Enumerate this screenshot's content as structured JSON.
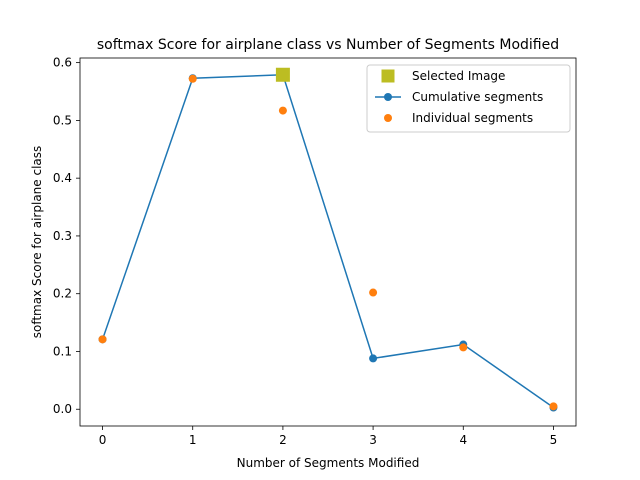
{
  "chart_data": {
    "type": "line",
    "title": "softmax Score for airplane class vs Number of Segments Modified",
    "xlabel": "Number of Segments Modified",
    "ylabel": "softmax Score for airplane class",
    "xlim": [
      -0.25,
      5.25
    ],
    "ylim": [
      -0.029,
      0.608
    ],
    "x_ticks": [
      0,
      1,
      2,
      3,
      4,
      5
    ],
    "y_ticks": [
      0.0,
      0.1,
      0.2,
      0.3,
      0.4,
      0.5,
      0.6
    ],
    "x_tick_labels": [
      "0",
      "1",
      "2",
      "3",
      "4",
      "5"
    ],
    "y_tick_labels": [
      "0.0",
      "0.1",
      "0.2",
      "0.3",
      "0.4",
      "0.5",
      "0.6"
    ],
    "grid": false,
    "legend_position": "top-right",
    "series": [
      {
        "name": "Selected Image",
        "kind": "marker",
        "marker": "square",
        "color": "#bcbd22",
        "x": [
          2
        ],
        "y": [
          0.579
        ]
      },
      {
        "name": "Cumulative segments",
        "kind": "line+markers",
        "marker": "circle",
        "color": "#1f77b4",
        "x": [
          0,
          1,
          2,
          3,
          4,
          5
        ],
        "y": [
          0.121,
          0.573,
          0.579,
          0.088,
          0.112,
          0.003
        ]
      },
      {
        "name": "Individual segments",
        "kind": "marker",
        "marker": "circle",
        "color": "#ff7f0e",
        "x": [
          0,
          1,
          2,
          3,
          4,
          5
        ],
        "y": [
          0.121,
          0.572,
          0.517,
          0.202,
          0.107,
          0.005
        ]
      }
    ]
  }
}
